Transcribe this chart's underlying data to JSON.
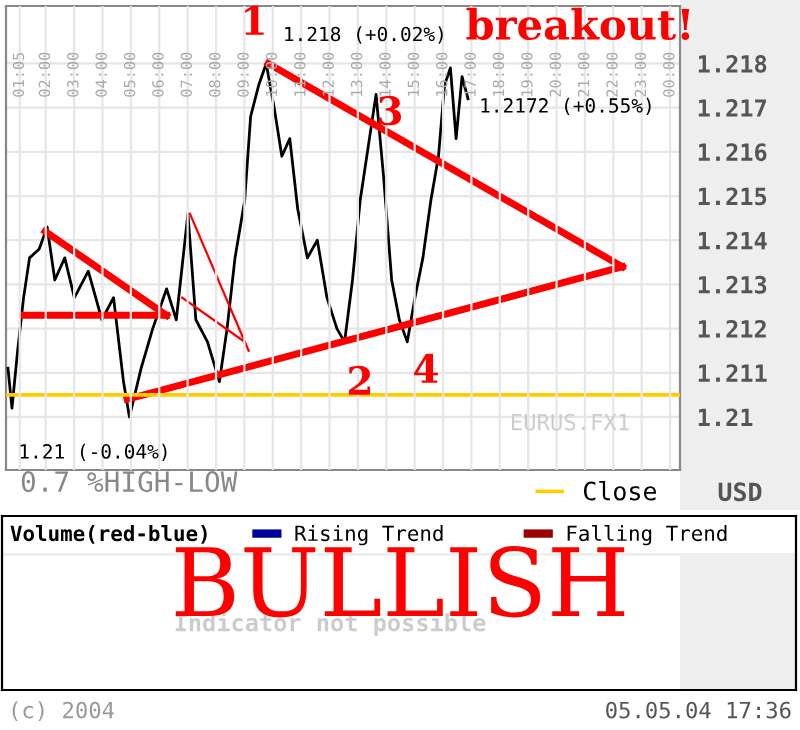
{
  "chart_data": [
    {
      "type": "line",
      "xlim": [
        0.6,
        24.35
      ],
      "ylim": [
        1.2088,
        1.2193
      ],
      "xticks": [
        {
          "value": 1.083,
          "label": "01:05"
        },
        {
          "value": 2,
          "label": "02:00"
        },
        {
          "value": 3,
          "label": "03:00"
        },
        {
          "value": 4,
          "label": "04:00"
        },
        {
          "value": 5,
          "label": "05:00"
        },
        {
          "value": 6,
          "label": "06:00"
        },
        {
          "value": 7,
          "label": "07:00"
        },
        {
          "value": 8,
          "label": "08:00"
        },
        {
          "value": 9,
          "label": "09:00"
        },
        {
          "value": 10,
          "label": "10:00"
        },
        {
          "value": 11,
          "label": "11:00"
        },
        {
          "value": 12,
          "label": "12:00"
        },
        {
          "value": 13,
          "label": "13:00"
        },
        {
          "value": 14,
          "label": "14:00"
        },
        {
          "value": 15,
          "label": "15:00"
        },
        {
          "value": 16,
          "label": "16:00"
        },
        {
          "value": 17,
          "label": "17:00"
        },
        {
          "value": 18,
          "label": "18:00"
        },
        {
          "value": 19,
          "label": "19:00"
        },
        {
          "value": 20,
          "label": "20:00"
        },
        {
          "value": 21,
          "label": "21:00"
        },
        {
          "value": 22,
          "label": "22:00"
        },
        {
          "value": 23,
          "label": "23:00"
        },
        {
          "value": 24,
          "label": "00:00"
        }
      ],
      "yticks": [
        1.21,
        1.211,
        1.212,
        1.213,
        1.214,
        1.215,
        1.216,
        1.217,
        1.218
      ],
      "grid": true,
      "legend": "bottom right",
      "series": [
        {
          "color": "#000000",
          "x": [
            0.67,
            0.81,
            1.01,
            1.22,
            1.43,
            1.77,
            2.05,
            2.32,
            2.67,
            3.01,
            3.5,
            3.98,
            4.39,
            4.74,
            4.95,
            5.36,
            5.77,
            6.26,
            6.6,
            7.01,
            7.29,
            7.7,
            8.12,
            8.39,
            8.67,
            9.01,
            9.22,
            9.5,
            9.77,
            10.05,
            10.32,
            10.6,
            10.88,
            11.22,
            11.57,
            11.91,
            12.26,
            12.53,
            12.81,
            13.08,
            13.36,
            13.64,
            13.91,
            14.19,
            14.46,
            14.74,
            15.01,
            15.29,
            15.57,
            15.84,
            16.05,
            16.26,
            16.46,
            16.67,
            16.88
          ],
          "values": [
            1.2111,
            1.2102,
            1.2115,
            1.2127,
            1.2136,
            1.2138,
            1.2143,
            1.2131,
            1.2136,
            1.2127,
            1.2133,
            1.2122,
            1.2127,
            1.2108,
            1.21,
            1.2111,
            1.212,
            1.2129,
            1.2122,
            1.2146,
            1.2122,
            1.2117,
            1.2108,
            1.212,
            1.2136,
            1.2149,
            1.2168,
            1.2175,
            1.218,
            1.217,
            1.2159,
            1.2163,
            1.2147,
            1.2136,
            1.214,
            1.2127,
            1.212,
            1.2117,
            1.2131,
            1.2149,
            1.2161,
            1.2173,
            1.2154,
            1.2131,
            1.2122,
            1.2117,
            1.2127,
            1.2136,
            1.2149,
            1.2159,
            1.2175,
            1.2179,
            1.2163,
            1.2177,
            1.2172
          ]
        },
        {
          "color": "#ff0000",
          "x": [
            9.84,
            22.32
          ],
          "values": [
            1.218,
            1.2134
          ]
        },
        {
          "color": "#ff0000",
          "x": [
            4.87,
            22.32
          ],
          "values": [
            1.2104,
            1.2134
          ]
        },
        {
          "color": "#ff0000",
          "x": [
            1.22,
            6.26
          ],
          "values": [
            1.2123,
            1.2123
          ]
        },
        {
          "color": "#ff0000",
          "x": [
            1.98,
            6.26
          ],
          "values": [
            1.2142,
            1.2123
          ]
        },
        {
          "color": "#ff0000",
          "x": [
            7.08,
            9.15
          ],
          "values": [
            1.2146,
            1.2115
          ]
        },
        {
          "color": "#ff0000",
          "x": [
            6.81,
            9.01
          ],
          "values": [
            1.2127,
            1.2117
          ]
        },
        {
          "name": "Close",
          "color": "#ffcc00",
          "x": [
            0.6,
            24.35
          ],
          "values": [
            1.2105,
            1.2105
          ]
        }
      ],
      "annotations": [
        "1",
        "2",
        "3",
        "4",
        {
          "text": "1.218 (+0.02%)",
          "x": 9.77,
          "y": 1.218
        },
        {
          "text": "1.2172 (+0.55%)",
          "x": 16.88,
          "y": 1.2172
        },
        {
          "text": "1.21 (-0.04%)",
          "x": 4.95,
          "y": 1.21
        },
        "breakout!",
        "EURUS.FX1",
        "0.7 %HIGH-LOW",
        "USD"
      ]
    },
    {
      "type": "other",
      "title": "Volume(red-blue)",
      "legend": "top",
      "series": [
        {
          "name": "Rising Trend",
          "color": "#000099"
        },
        {
          "name": "Falling Trend",
          "color": "#990000"
        }
      ],
      "annotations": [
        "BULLISH",
        "Indicator not possible",
        "(c) 2004",
        "05.05.04 17:36"
      ]
    }
  ]
}
